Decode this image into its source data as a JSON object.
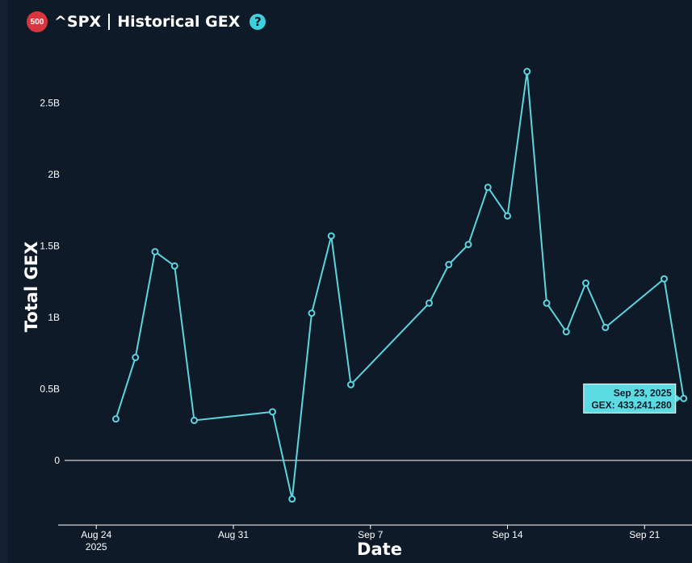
{
  "header": {
    "badge": "500",
    "symbol": "^SPX",
    "title": "Historical GEX",
    "help_glyph": "?"
  },
  "colors": {
    "background": "#0f1a28",
    "line": "#5dd4de",
    "badge": "#d8363f",
    "help": "#3ed0dc",
    "tooltip_bg": "#5ddbe3"
  },
  "chart_data": {
    "type": "line",
    "title": "^SPX | Historical GEX",
    "xlabel": "Date",
    "ylabel": "Total GEX",
    "x_ticks": [
      "Aug 24",
      "Aug 31",
      "Sep 7",
      "Sep 14",
      "Sep 21"
    ],
    "x_tick_year": "2025",
    "y_ticks": [
      {
        "value": 0,
        "label": "0"
      },
      {
        "value": 500000000,
        "label": "0.5B"
      },
      {
        "value": 1000000000,
        "label": "1B"
      },
      {
        "value": 1500000000,
        "label": "1.5B"
      },
      {
        "value": 2000000000,
        "label": "2B"
      },
      {
        "value": 2500000000,
        "label": "2.5B"
      }
    ],
    "ylim": [
      -460000000,
      2790000000
    ],
    "xlim": [
      "2025-08-23",
      "2025-09-24"
    ],
    "series": [
      {
        "points": [
          {
            "x": "2025-08-25",
            "y": 290000000
          },
          {
            "x": "2025-08-26",
            "y": 720000000
          },
          {
            "x": "2025-08-27",
            "y": 1460000000
          },
          {
            "x": "2025-08-28",
            "y": 1360000000
          },
          {
            "x": "2025-08-29",
            "y": 280000000
          },
          {
            "x": "2025-09-02",
            "y": 340000000
          },
          {
            "x": "2025-09-03",
            "y": -270000000
          },
          {
            "x": "2025-09-04",
            "y": 1030000000
          },
          {
            "x": "2025-09-05",
            "y": 1570000000
          },
          {
            "x": "2025-09-06",
            "y": 530000000
          },
          {
            "x": "2025-09-10",
            "y": 1100000000
          },
          {
            "x": "2025-09-11",
            "y": 1370000000
          },
          {
            "x": "2025-09-12",
            "y": 1510000000
          },
          {
            "x": "2025-09-13",
            "y": 1910000000
          },
          {
            "x": "2025-09-14",
            "y": 1710000000
          },
          {
            "x": "2025-09-15",
            "y": 2720000000
          },
          {
            "x": "2025-09-16",
            "y": 1100000000
          },
          {
            "x": "2025-09-17",
            "y": 900000000
          },
          {
            "x": "2025-09-18",
            "y": 1240000000
          },
          {
            "x": "2025-09-19",
            "y": 930000000
          },
          {
            "x": "2025-09-22",
            "y": 1270000000
          },
          {
            "x": "2025-09-23",
            "y": 433241280
          }
        ]
      }
    ],
    "tooltip": {
      "date": "Sep 23, 2025",
      "value_text": "GEX: 433,241,280"
    },
    "grid": false,
    "legend": "none"
  }
}
